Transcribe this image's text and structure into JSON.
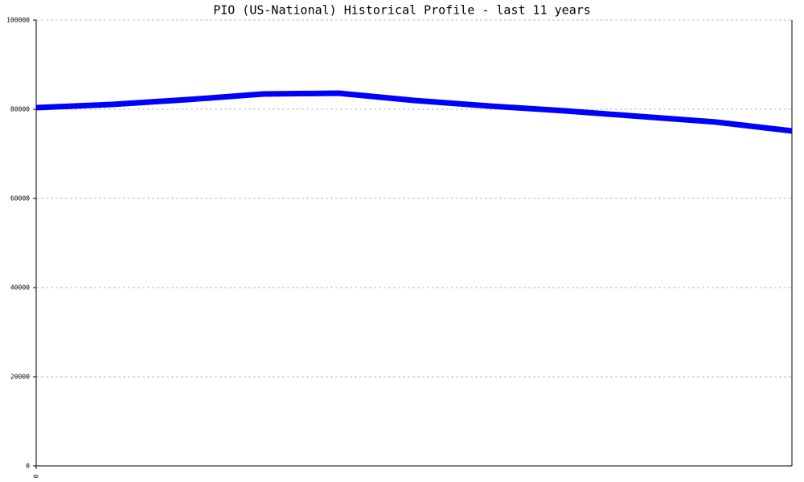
{
  "chart_data": {
    "type": "line",
    "title": "PIO (US-National) Historical Profile - last 11 years",
    "categories": [
      "0",
      null,
      null,
      null,
      null,
      null,
      null,
      null,
      null,
      null,
      null
    ],
    "series": [
      {
        "name": "PIO",
        "color": "#0000ff",
        "values": [
          80360,
          81080,
          82160,
          83420,
          83600,
          81980,
          80720,
          79640,
          78380,
          77120,
          75140
        ]
      }
    ],
    "ylim": [
      0,
      100000
    ],
    "yticks": [
      0,
      20000,
      40000,
      60000,
      80000,
      100000
    ],
    "grid": true
  }
}
